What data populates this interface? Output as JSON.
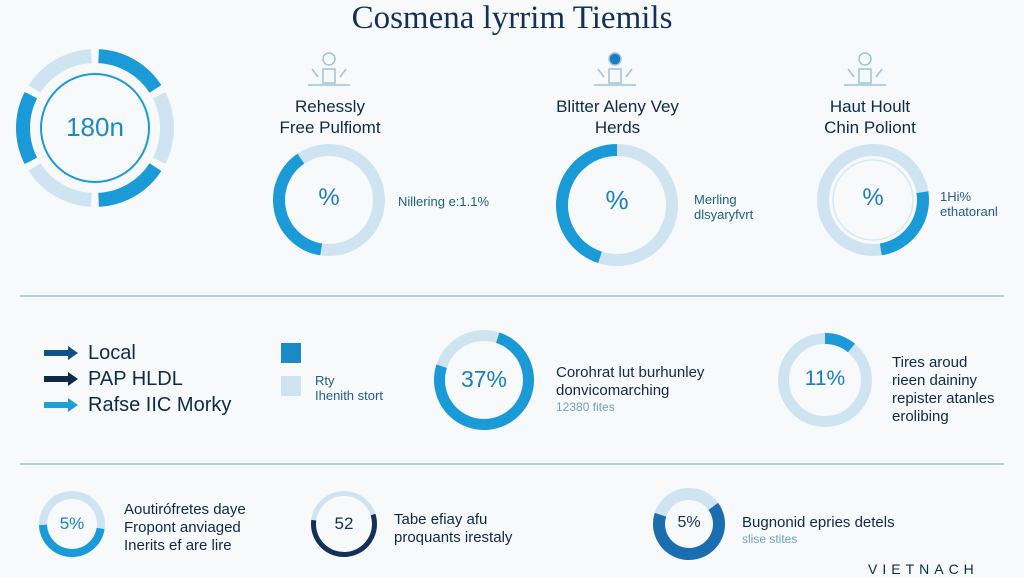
{
  "title": "Cosmena lyrrim Tiemils",
  "chart_data": [
    {
      "type": "donut",
      "id": "big",
      "center_label": "180n",
      "segments": 6
    },
    {
      "type": "donut",
      "id": "c1",
      "center_label": "%",
      "fraction": 0.38,
      "heading": [
        "Rehessly",
        "Free Pulfiomt"
      ],
      "side_text": [
        "Nillering e:1.1%"
      ]
    },
    {
      "type": "donut",
      "id": "c2",
      "center_label": "%",
      "fraction": 0.45,
      "heading": [
        "Blitter Aleny Vey",
        "Herds"
      ],
      "side_text": [
        "Merling",
        "dlsyaryfvrt"
      ]
    },
    {
      "type": "donut",
      "id": "c3",
      "center_label": "%",
      "fraction": 0.25,
      "heading": [
        "Haut Hoult",
        "Chin Poliont"
      ],
      "side_text": [
        "1Hi%",
        "ethatoranl"
      ]
    },
    {
      "type": "donut",
      "id": "d1",
      "center_label": "37%",
      "value": 37,
      "text": [
        "Corohrat lut burhunley",
        "donvicomarching"
      ],
      "subtext": "12380 fites"
    },
    {
      "type": "donut",
      "id": "d2",
      "center_label": "11%",
      "value": 11,
      "text": [
        "Tires aroud",
        "rieen daininy",
        "repister atanles",
        "erolibing"
      ]
    },
    {
      "type": "donut",
      "id": "e1",
      "center_label": "5%",
      "value": 5,
      "text": [
        "Aoutirófretes daye",
        "Fropont anviaged",
        "Inerits ef are lire"
      ]
    },
    {
      "type": "donut",
      "id": "e2",
      "center_label": "52",
      "value": 52,
      "text": [
        "Tabe efiay afu",
        "proquants irestaly"
      ]
    },
    {
      "type": "donut",
      "id": "e3",
      "center_label": "5%",
      "value": 5,
      "text": [
        "Bugnonid epries detels"
      ],
      "subtext": "slise stites"
    }
  ],
  "legend": {
    "items": [
      {
        "label": "Local",
        "color": "#12508a"
      },
      {
        "label": "PAP HLDL",
        "color": "#0d2a4a"
      },
      {
        "label": "Rafse IIC Morky",
        "color": "#1ea0d6"
      }
    ],
    "squares": [
      {
        "color": "#1a8ac8"
      },
      {
        "color": "#cfe4f1"
      }
    ],
    "square_text": [
      "Rty",
      "Ihenith stort"
    ]
  },
  "colors": {
    "accent": "#1a9ad6",
    "light": "#cfe4f1",
    "dark": "#0d2a4a"
  },
  "footer": "VIETNACH"
}
